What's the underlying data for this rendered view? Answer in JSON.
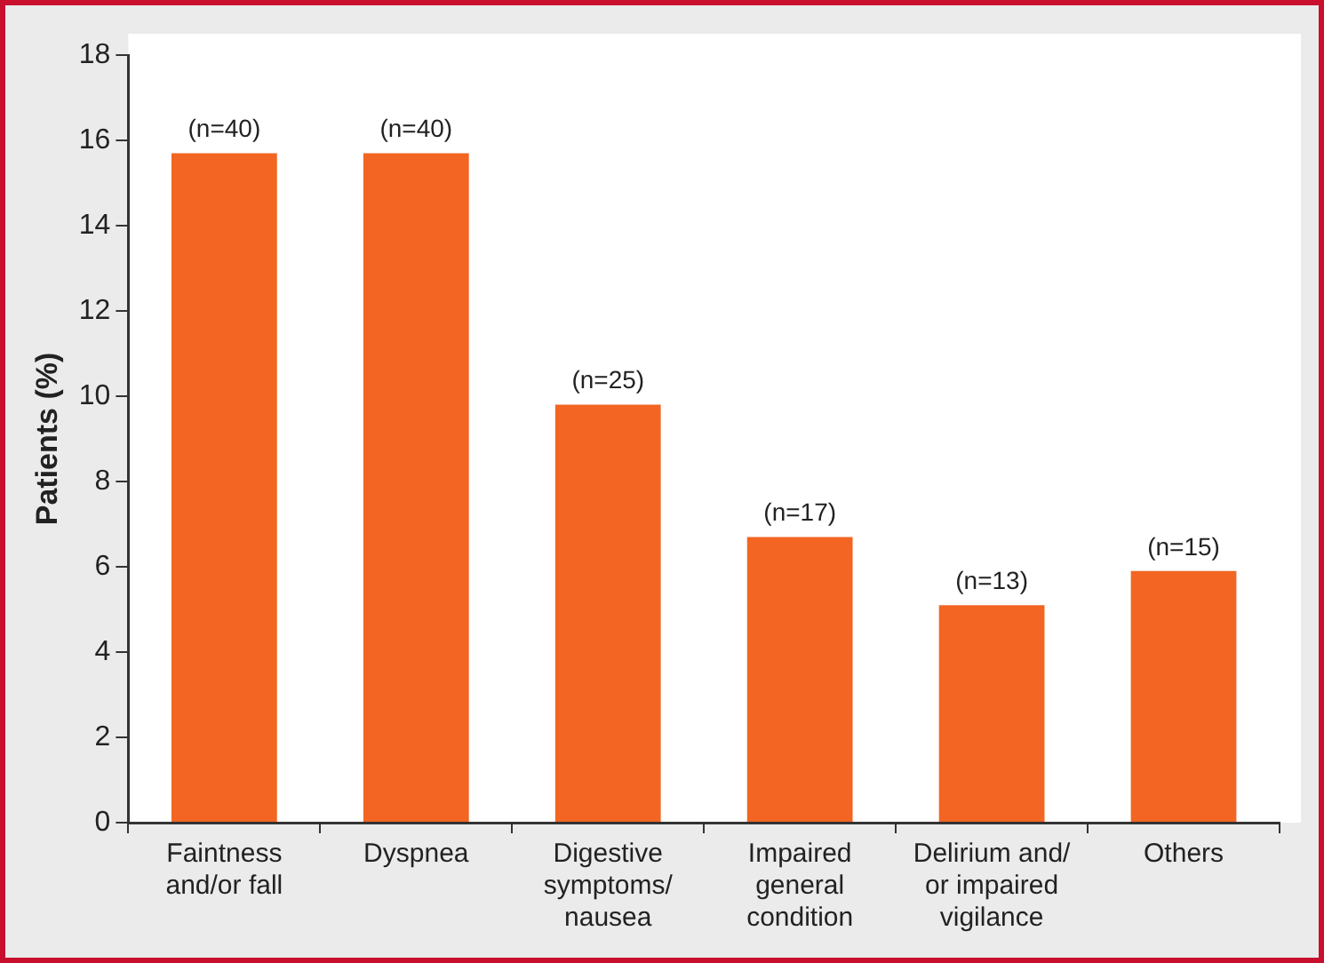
{
  "chart_data": {
    "type": "bar",
    "ylabel": "Patients (%)",
    "categories": [
      "Faintness and/or fall",
      "Dyspnea",
      "Digestive symptoms/ nausea",
      "Impaired general condition",
      "Delirium and/ or impaired vigilance",
      "Others"
    ],
    "values": [
      15.7,
      15.7,
      9.8,
      6.7,
      5.1,
      5.9
    ],
    "annotations": [
      {
        "text": "(n=40)",
        "x": "Faintness and/or fall",
        "y": 15.7
      },
      {
        "text": "(n=40)",
        "x": "Dyspnea",
        "y": 15.7
      },
      {
        "text": "(n=25)",
        "x": "Digestive symptoms/ nausea",
        "y": 9.8
      },
      {
        "text": "(n=17)",
        "x": "Impaired general condition",
        "y": 6.7
      },
      {
        "text": "(n=13)",
        "x": "Delirium and/ or impaired vigilance",
        "y": 5.1
      },
      {
        "text": "(n=15)",
        "x": "Others",
        "y": 5.9
      }
    ],
    "color": "#f26522",
    "ylim": [
      0,
      18
    ],
    "yticks": [
      0,
      2,
      4,
      6,
      8,
      10,
      12,
      14,
      16,
      18
    ],
    "grid": false,
    "legend": false
  }
}
